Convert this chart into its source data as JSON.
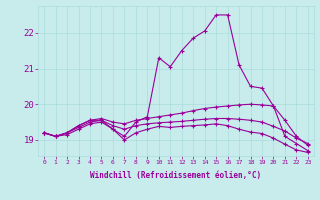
{
  "xlabel": "Windchill (Refroidissement éolien,°C)",
  "bg_color": "#c8ecec",
  "line_color": "#990099",
  "grid_color": "#aadddd",
  "xlim": [
    -0.5,
    23.5
  ],
  "ylim": [
    18.55,
    22.75
  ],
  "yticks": [
    19,
    20,
    21,
    22
  ],
  "xticks": [
    0,
    1,
    2,
    3,
    4,
    5,
    6,
    7,
    8,
    9,
    10,
    11,
    12,
    13,
    14,
    15,
    16,
    17,
    18,
    19,
    20,
    21,
    22,
    23
  ],
  "series": [
    {
      "x": [
        0,
        1,
        2,
        3,
        4,
        5,
        6,
        7,
        8,
        9,
        10,
        11,
        12,
        13,
        14,
        15,
        16,
        17,
        18,
        19,
        20,
        21,
        22,
        23
      ],
      "y": [
        19.2,
        19.1,
        19.2,
        19.4,
        19.55,
        19.55,
        19.3,
        19.1,
        19.5,
        19.65,
        21.3,
        21.05,
        21.5,
        21.85,
        22.05,
        22.5,
        22.5,
        21.1,
        20.5,
        20.45,
        19.95,
        19.1,
        18.9,
        18.7
      ]
    },
    {
      "x": [
        0,
        1,
        2,
        3,
        4,
        5,
        6,
        7,
        8,
        9,
        10,
        11,
        12,
        13,
        14,
        15,
        16,
        17,
        18,
        19,
        20,
        21,
        22,
        23
      ],
      "y": [
        19.2,
        19.1,
        19.2,
        19.4,
        19.55,
        19.6,
        19.5,
        19.45,
        19.55,
        19.6,
        19.65,
        19.7,
        19.75,
        19.82,
        19.88,
        19.92,
        19.95,
        19.98,
        20.0,
        19.98,
        19.95,
        19.55,
        19.1,
        18.85
      ]
    },
    {
      "x": [
        0,
        1,
        2,
        3,
        4,
        5,
        6,
        7,
        8,
        9,
        10,
        11,
        12,
        13,
        14,
        15,
        16,
        17,
        18,
        19,
        20,
        21,
        22,
        23
      ],
      "y": [
        19.2,
        19.1,
        19.2,
        19.35,
        19.5,
        19.55,
        19.4,
        19.3,
        19.4,
        19.45,
        19.48,
        19.5,
        19.52,
        19.55,
        19.58,
        19.6,
        19.6,
        19.58,
        19.55,
        19.5,
        19.38,
        19.25,
        19.05,
        18.9
      ]
    },
    {
      "x": [
        0,
        1,
        2,
        3,
        4,
        5,
        6,
        7,
        8,
        9,
        10,
        11,
        12,
        13,
        14,
        15,
        16,
        17,
        18,
        19,
        20,
        21,
        22,
        23
      ],
      "y": [
        19.2,
        19.1,
        19.15,
        19.3,
        19.45,
        19.5,
        19.3,
        19.0,
        19.2,
        19.3,
        19.38,
        19.35,
        19.38,
        19.4,
        19.42,
        19.45,
        19.4,
        19.3,
        19.22,
        19.18,
        19.05,
        18.88,
        18.72,
        18.65
      ]
    }
  ]
}
